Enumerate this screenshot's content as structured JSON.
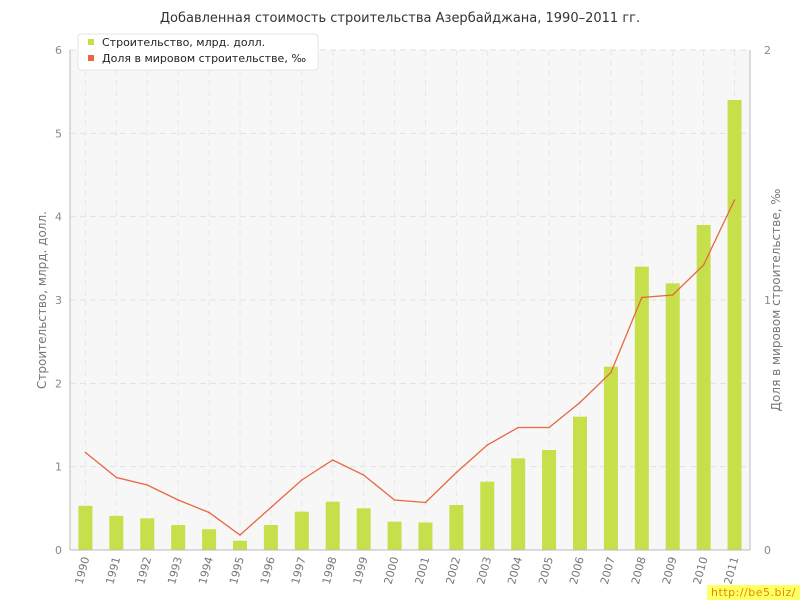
{
  "chart_data": {
    "type": "bar",
    "title": "Добавленная стоимость строительства Азербайджана, 1990–2011 гг.",
    "ylabel": "Строительство, млрд. долл.",
    "ylabel_right": "Доля в мировом строительстве, ‰",
    "categories": [
      "1990",
      "1991",
      "1992",
      "1993",
      "1994",
      "1995",
      "1996",
      "1997",
      "1998",
      "1999",
      "2000",
      "2001",
      "2002",
      "2003",
      "2004",
      "2005",
      "2006",
      "2007",
      "2008",
      "2009",
      "2010",
      "2011"
    ],
    "series": [
      {
        "name": "Строительство, млрд. долл.",
        "type": "bar",
        "axis": "left",
        "color": "#c5e04a",
        "values": [
          0.53,
          0.41,
          0.38,
          0.3,
          0.25,
          0.11,
          0.3,
          0.46,
          0.58,
          0.5,
          0.34,
          0.33,
          0.54,
          0.82,
          1.1,
          1.2,
          1.6,
          2.2,
          3.4,
          3.2,
          3.9,
          5.4
        ]
      },
      {
        "name": "Доля в мировом строительстве, ‰",
        "type": "line",
        "axis": "right",
        "color": "#e8673f",
        "values": [
          0.39,
          0.29,
          0.26,
          0.2,
          0.15,
          0.06,
          0.17,
          0.28,
          0.36,
          0.3,
          0.2,
          0.19,
          0.31,
          0.42,
          0.49,
          0.49,
          0.59,
          0.71,
          1.01,
          1.02,
          1.14,
          1.4
        ]
      }
    ],
    "ylim": [
      0,
      6
    ],
    "ylim_right": [
      0,
      2
    ],
    "yticks": [
      "0",
      "1",
      "2",
      "3",
      "4",
      "5",
      "6"
    ],
    "yticks_right": [
      "0",
      "1",
      "2"
    ],
    "grid": true,
    "legend": "top-left"
  },
  "watermark": "http://be5.biz/"
}
